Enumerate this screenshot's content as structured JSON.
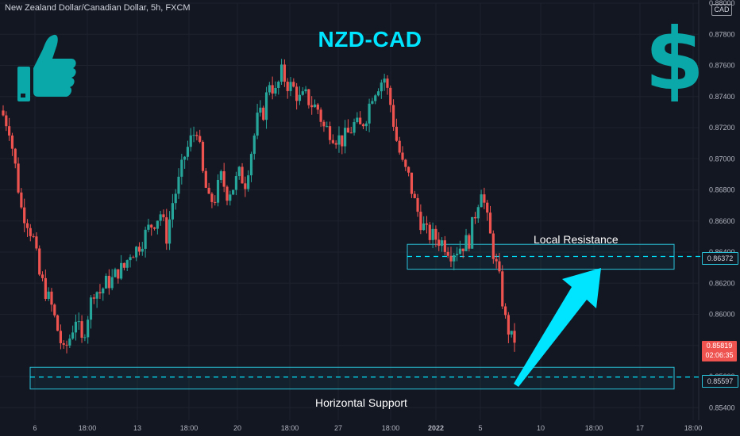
{
  "symbol": {
    "title": "New Zealand Dollar/Canadian Dollar, 5h, FXCM",
    "currency": "CAD"
  },
  "headline": "NZD-CAD",
  "colors": {
    "up": "#26a69a",
    "down": "#ef5350",
    "accent": "#00e5ff",
    "teal_icon": "#0aa8a8",
    "background": "#131722",
    "grid": "#1e222d",
    "zone": "#2ac2d8"
  },
  "icons": [
    "thumbs-up-icon",
    "dollar-sign-icon",
    "arrow-up-icon"
  ],
  "chart_data": {
    "type": "candlestick",
    "ylim": [
      0.8532,
      0.88
    ],
    "y_ticks": [
      "0.88000",
      "0.87800",
      "0.87600",
      "0.87400",
      "0.87200",
      "0.87000",
      "0.86800",
      "0.86600",
      "0.86400",
      "0.86200",
      "0.86000",
      "0.85800",
      "0.85600",
      "0.85400"
    ],
    "x_ticks": [
      "6",
      "18:00",
      "13",
      "18:00",
      "20",
      "18:00",
      "27",
      "18:00",
      "2022",
      "5",
      "10",
      "18:00",
      "17",
      "18:00"
    ],
    "close_path": [
      0.8728,
      0.872,
      0.8695,
      0.8668,
      0.866,
      0.8648,
      0.8625,
      0.8615,
      0.8605,
      0.859,
      0.8575,
      0.8585,
      0.8598,
      0.8582,
      0.86,
      0.8616,
      0.8614,
      0.862,
      0.8622,
      0.8628,
      0.863,
      0.864,
      0.8642,
      0.8648,
      0.8655,
      0.866,
      0.8665,
      0.865,
      0.8672,
      0.8685,
      0.8702,
      0.8712,
      0.872,
      0.869,
      0.8672,
      0.8675,
      0.8688,
      0.8678,
      0.8682,
      0.869,
      0.8685,
      0.8705,
      0.8725,
      0.873,
      0.875,
      0.8742,
      0.8755,
      0.8748,
      0.8745,
      0.8738,
      0.874,
      0.8735,
      0.8732,
      0.872,
      0.8718,
      0.8714,
      0.8712,
      0.8716,
      0.8722,
      0.872,
      0.8728,
      0.8742,
      0.8748,
      0.8752,
      0.8735,
      0.8712,
      0.8696,
      0.8688,
      0.8672,
      0.866,
      0.8652,
      0.865,
      0.8648,
      0.8645,
      0.864,
      0.8642,
      0.8645,
      0.8648,
      0.8665,
      0.8682,
      0.866,
      0.864,
      0.8622,
      0.8596,
      0.8584
    ],
    "local_resistance": {
      "label": "Local Resistance",
      "price": 0.86372,
      "top": 0.8645,
      "bottom": 0.8629
    },
    "horizontal_support": {
      "label": "Horizontal Support",
      "price": 0.85597,
      "top": 0.8566,
      "bottom": 0.8552
    },
    "last_price": {
      "value": "0.85819",
      "countdown": "02:06:35"
    },
    "support_tag": "0.85597",
    "resistance_tag": "0.86372"
  }
}
